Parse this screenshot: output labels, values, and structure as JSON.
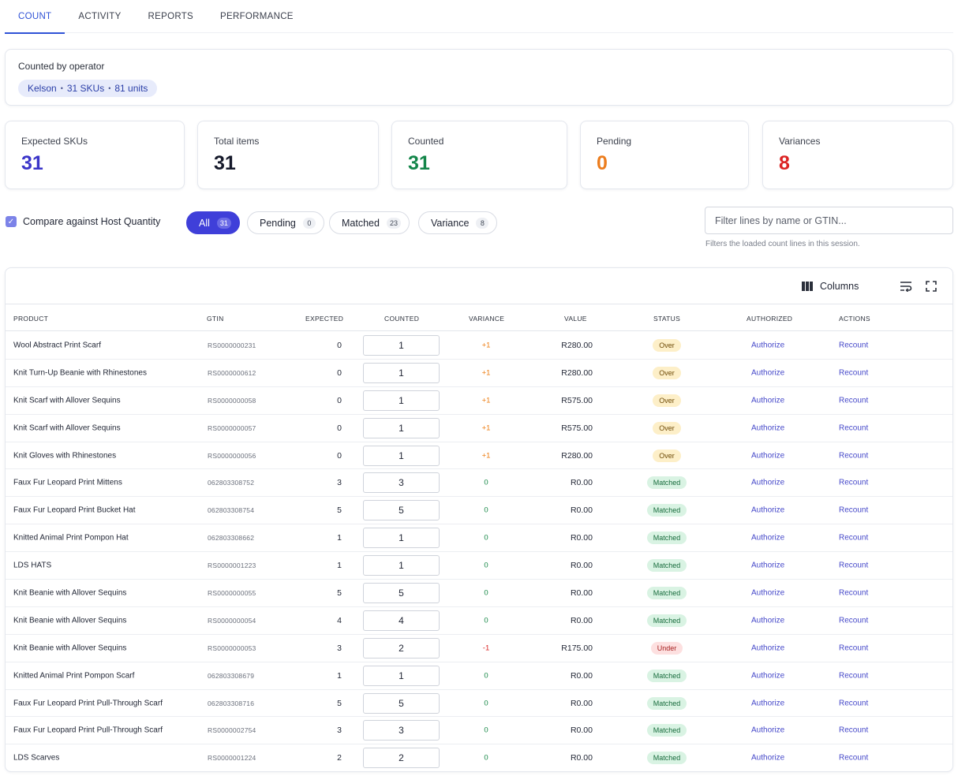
{
  "tabs": [
    {
      "label": "COUNT",
      "active": true
    },
    {
      "label": "ACTIVITY",
      "active": false
    },
    {
      "label": "REPORTS",
      "active": false
    },
    {
      "label": "PERFORMANCE",
      "active": false
    }
  ],
  "operator": {
    "title": "Counted by operator",
    "name": "Kelson",
    "skus": "31 SKUs",
    "units": "81 units"
  },
  "stats": [
    {
      "label": "Expected SKUs",
      "value": "31",
      "color": "#3b35c9"
    },
    {
      "label": "Total items",
      "value": "31",
      "color": "#161a2b"
    },
    {
      "label": "Counted",
      "value": "31",
      "color": "#14864a"
    },
    {
      "label": "Pending",
      "value": "0",
      "color": "#ec7d1e"
    },
    {
      "label": "Variances",
      "value": "8",
      "color": "#dc2424"
    }
  ],
  "compare": {
    "label": "Compare against Host Quantity",
    "checked": true
  },
  "filters": [
    {
      "label": "All",
      "count": "31",
      "active": true
    },
    {
      "label": "Pending",
      "count": "0",
      "active": false
    },
    {
      "label": "Matched",
      "count": "23",
      "active": false
    },
    {
      "label": "Variance",
      "count": "8",
      "active": false
    }
  ],
  "search": {
    "placeholder": "Filter lines by name or GTIN...",
    "help": "Filters the loaded count lines in this session."
  },
  "toolbar": {
    "columns_label": "Columns"
  },
  "table": {
    "headers": [
      "PRODUCT",
      "GTIN",
      "EXPECTED",
      "COUNTED",
      "VARIANCE",
      "VALUE",
      "STATUS",
      "AUTHORIZED",
      "ACTIONS"
    ],
    "authorize_label": "Authorize",
    "recount_label": "Recount",
    "status_colors": {
      "Over": {
        "bg": "#fdefc8",
        "fg": "#6e4a06"
      },
      "Matched": {
        "bg": "#d9f3e3",
        "fg": "#176b3c"
      },
      "Under": {
        "bg": "#fde0e0",
        "fg": "#a51d1d"
      }
    },
    "variance_colors": {
      "positive": "#ee7d12",
      "zero": "#1b8a4a",
      "negative": "#d92323"
    },
    "rows": [
      {
        "product": "Wool Abstract Print Scarf",
        "gtin": "RS0000000231",
        "expected": "0",
        "counted": "1",
        "variance": "+1",
        "value": "R280.00",
        "status": "Over"
      },
      {
        "product": "Knit Turn-Up Beanie with Rhinestones",
        "gtin": "RS0000000612",
        "expected": "0",
        "counted": "1",
        "variance": "+1",
        "value": "R280.00",
        "status": "Over"
      },
      {
        "product": "Knit Scarf with Allover Sequins",
        "gtin": "RS0000000058",
        "expected": "0",
        "counted": "1",
        "variance": "+1",
        "value": "R575.00",
        "status": "Over"
      },
      {
        "product": "Knit Scarf with Allover Sequins",
        "gtin": "RS0000000057",
        "expected": "0",
        "counted": "1",
        "variance": "+1",
        "value": "R575.00",
        "status": "Over"
      },
      {
        "product": "Knit Gloves with Rhinestones",
        "gtin": "RS0000000056",
        "expected": "0",
        "counted": "1",
        "variance": "+1",
        "value": "R280.00",
        "status": "Over"
      },
      {
        "product": "Faux Fur Leopard Print Mittens",
        "gtin": "062803308752",
        "expected": "3",
        "counted": "3",
        "variance": "0",
        "value": "R0.00",
        "status": "Matched"
      },
      {
        "product": "Faux Fur Leopard Print Bucket Hat",
        "gtin": "062803308754",
        "expected": "5",
        "counted": "5",
        "variance": "0",
        "value": "R0.00",
        "status": "Matched"
      },
      {
        "product": "Knitted Animal Print Pompon Hat",
        "gtin": "062803308662",
        "expected": "1",
        "counted": "1",
        "variance": "0",
        "value": "R0.00",
        "status": "Matched"
      },
      {
        "product": "LDS HATS",
        "gtin": "RS0000001223",
        "expected": "1",
        "counted": "1",
        "variance": "0",
        "value": "R0.00",
        "status": "Matched"
      },
      {
        "product": "Knit Beanie with Allover Sequins",
        "gtin": "RS0000000055",
        "expected": "5",
        "counted": "5",
        "variance": "0",
        "value": "R0.00",
        "status": "Matched"
      },
      {
        "product": "Knit Beanie with Allover Sequins",
        "gtin": "RS0000000054",
        "expected": "4",
        "counted": "4",
        "variance": "0",
        "value": "R0.00",
        "status": "Matched"
      },
      {
        "product": "Knit Beanie with Allover Sequins",
        "gtin": "RS0000000053",
        "expected": "3",
        "counted": "2",
        "variance": "-1",
        "value": "R175.00",
        "status": "Under"
      },
      {
        "product": "Knitted Animal Print Pompon Scarf",
        "gtin": "062803308679",
        "expected": "1",
        "counted": "1",
        "variance": "0",
        "value": "R0.00",
        "status": "Matched"
      },
      {
        "product": "Faux Fur Leopard Print Pull-Through Scarf",
        "gtin": "062803308716",
        "expected": "5",
        "counted": "5",
        "variance": "0",
        "value": "R0.00",
        "status": "Matched"
      },
      {
        "product": "Faux Fur Leopard Print Pull-Through Scarf",
        "gtin": "RS0000002754",
        "expected": "3",
        "counted": "3",
        "variance": "0",
        "value": "R0.00",
        "status": "Matched"
      },
      {
        "product": "LDS Scarves",
        "gtin": "RS0000001224",
        "expected": "2",
        "counted": "2",
        "variance": "0",
        "value": "R0.00",
        "status": "Matched"
      }
    ]
  }
}
